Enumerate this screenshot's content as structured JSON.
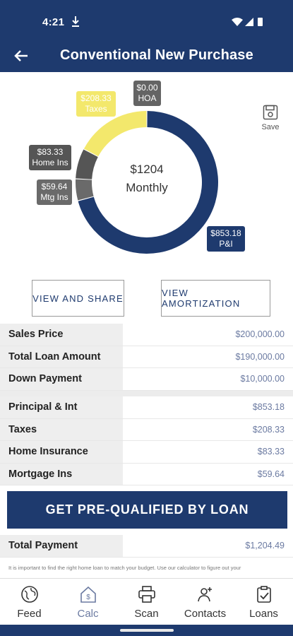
{
  "status_bar": {
    "time": "4:21"
  },
  "header": {
    "title": "Conventional New Purchase"
  },
  "chart_data": {
    "type": "pie",
    "center_value": "$1204",
    "center_label": "Monthly",
    "slices": [
      {
        "label": "P&I",
        "value": 853.18,
        "display": "$853.18",
        "color": "#1e3a6e"
      },
      {
        "label": "Mtg Ins",
        "value": 59.64,
        "display": "$59.64",
        "color": "#6a6a6a"
      },
      {
        "label": "Home Ins",
        "value": 83.33,
        "display": "$83.33",
        "color": "#555555"
      },
      {
        "label": "Taxes",
        "value": 208.33,
        "display": "$208.33",
        "color": "#f3e86c"
      },
      {
        "label": "HOA",
        "value": 0.0,
        "display": "$0.00",
        "color": "#646464"
      }
    ]
  },
  "save": {
    "label": "Save"
  },
  "buttons": {
    "view_share": "VIEW AND SHARE",
    "view_amortization": "VIEW AMORTIZATION",
    "prequal": "GET PRE-QUALIFIED BY LOAN"
  },
  "loan_summary": [
    {
      "label": "Sales Price",
      "value": "$200,000.00"
    },
    {
      "label": "Total Loan Amount",
      "value": "$190,000.00"
    },
    {
      "label": "Down Payment",
      "value": "$10,000.00"
    }
  ],
  "payment_breakdown": [
    {
      "label": "Principal & Int",
      "value": "$853.18"
    },
    {
      "label": "Taxes",
      "value": "$208.33"
    },
    {
      "label": "Home Insurance",
      "value": "$83.33"
    },
    {
      "label": "Mortgage Ins",
      "value": "$59.64"
    }
  ],
  "total_payment": {
    "label": "Total Payment",
    "value": "$1,204.49"
  },
  "disclaimer": "It is important to find the right home loan to match your budget. Use our calculator to figure out your",
  "nav": [
    {
      "label": "Feed",
      "icon": "globe-icon"
    },
    {
      "label": "Calc",
      "icon": "calculator-home-icon"
    },
    {
      "label": "Scan",
      "icon": "printer-icon"
    },
    {
      "label": "Contacts",
      "icon": "contacts-icon"
    },
    {
      "label": "Loans",
      "icon": "clipboard-check-icon"
    }
  ],
  "colors": {
    "primary": "#1e3a6e",
    "accent_text": "#6b7aa1",
    "taxes_yellow": "#f3e86c"
  }
}
